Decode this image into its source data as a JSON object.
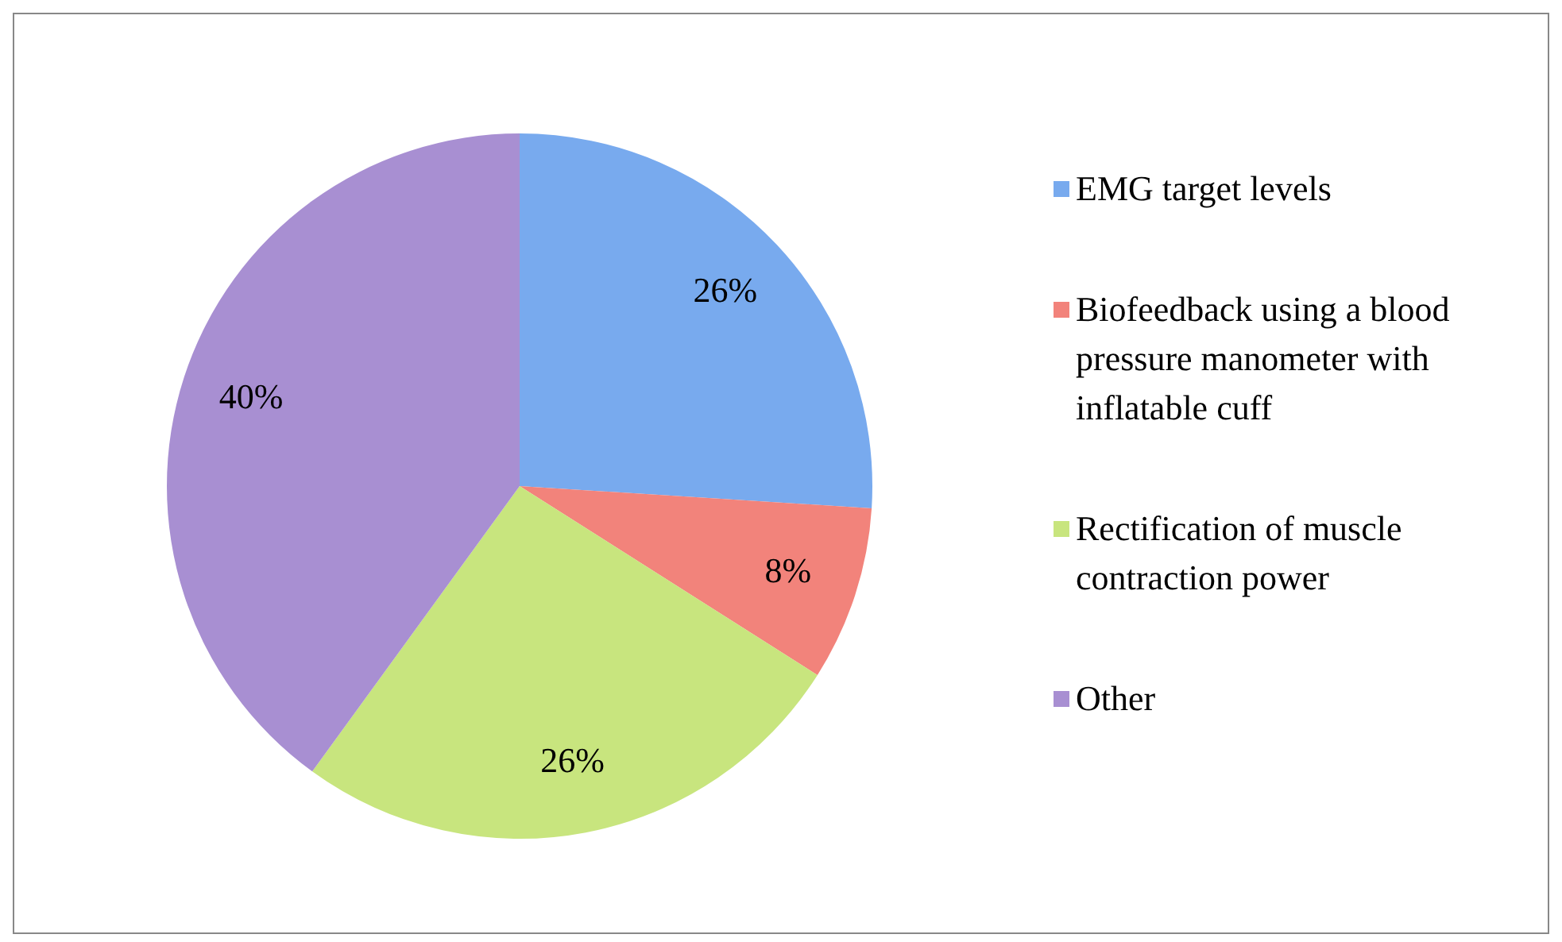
{
  "chart_data": {
    "type": "pie",
    "categories": [
      "EMG target levels",
      "Biofeedback using a blood pressure manometer with inflatable cuff",
      "Rectification of muscle contraction power",
      "Other"
    ],
    "values": [
      26,
      8,
      26,
      40
    ],
    "colors": [
      "#78aaee",
      "#f2837b",
      "#c8e57e",
      "#a88fd2"
    ],
    "value_labels": [
      "26%",
      "8%",
      "26%",
      "40%"
    ],
    "legend": "right"
  }
}
